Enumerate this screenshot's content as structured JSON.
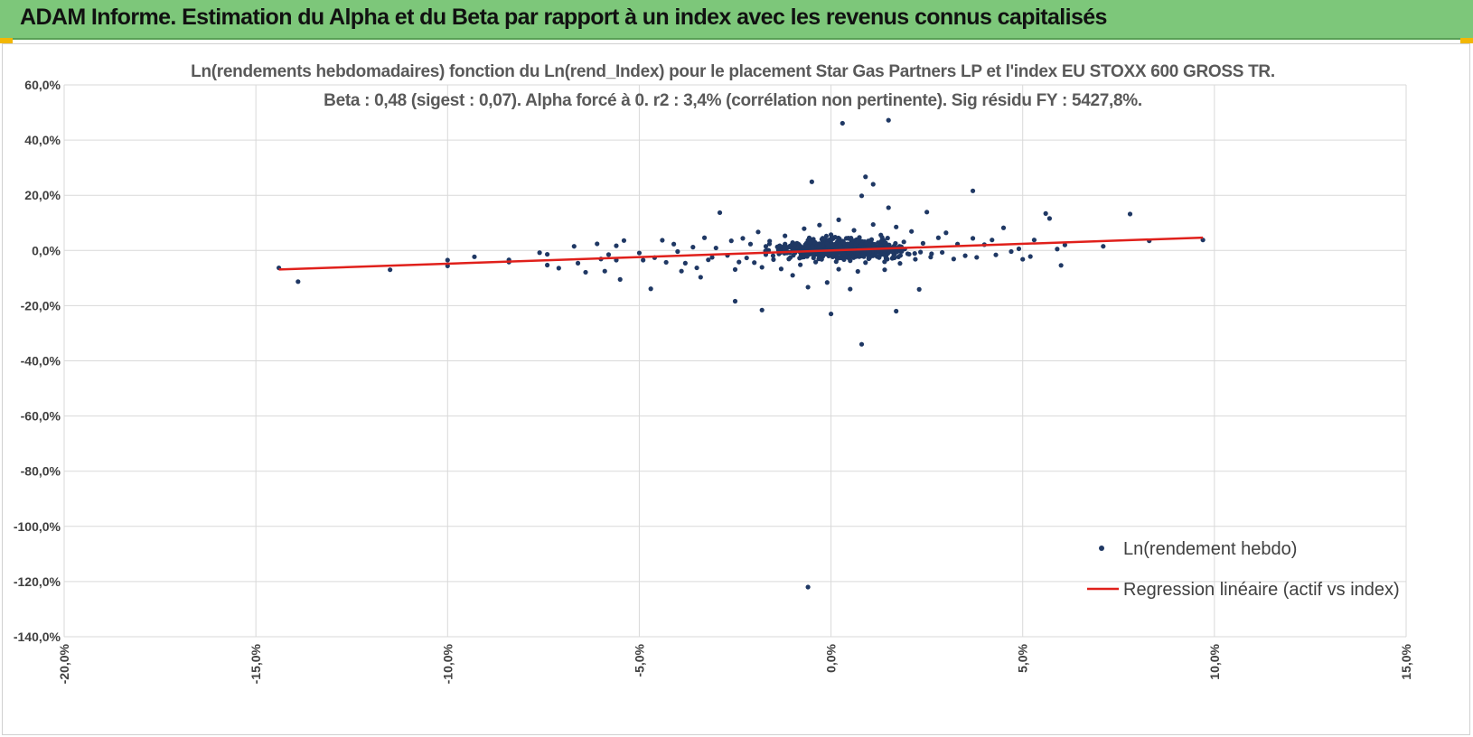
{
  "header": {
    "title": "ADAM Informe. Estimation du Alpha et du Beta par rapport à un index avec les revenus connus capitalisés"
  },
  "colors": {
    "banner": "#7dc77a",
    "points": "#1f3864",
    "regression": "#e0201b",
    "grid": "#d9d9d9"
  },
  "chart_data": {
    "type": "scatter",
    "title_lines": [
      "Ln(rendements hebdomadaires) fonction du Ln(rend_Index) pour le placement Star Gas Partners LP et l'index EU STOXX 600 GROSS TR.",
      "Beta : 0,48 (sigest : 0,07). Alpha forcé à 0. r2 : 3,4% (corrélation non pertinente). Sig résidu FY : 5427,8%."
    ],
    "xlim": [
      -20,
      15
    ],
    "ylim": [
      -140,
      60
    ],
    "x_ticks": [
      -20,
      -15,
      -10,
      -5,
      0,
      5,
      10,
      15
    ],
    "y_ticks": [
      60,
      40,
      20,
      0,
      -20,
      -40,
      -60,
      -80,
      -100,
      -120,
      -140
    ],
    "x_tick_labels": [
      "-20,0%",
      "-15,0%",
      "-10,0%",
      "-5,0%",
      "0,0%",
      "5,0%",
      "10,0%",
      "15,0%"
    ],
    "y_tick_labels": [
      "60,0%",
      "40,0%",
      "20,0%",
      "0,0%",
      "-20,0%",
      "-40,0%",
      "-60,0%",
      "-80,0%",
      "-100,0%",
      "-120,0%",
      "-140,0%"
    ],
    "grid": true,
    "legend_position": "bottom-right",
    "series": [
      {
        "name": "Ln(rendement hebdo)",
        "kind": "points",
        "points": [
          [
            -14.4,
            -6.3
          ],
          [
            -13.9,
            -11.3
          ],
          [
            -11.5,
            -7.0
          ],
          [
            -10.0,
            -5.6
          ],
          [
            -10.0,
            -3.5
          ],
          [
            -9.3,
            -2.3
          ],
          [
            -8.4,
            -4.2
          ],
          [
            -8.4,
            -3.4
          ],
          [
            -7.6,
            -0.8
          ],
          [
            -7.4,
            -5.3
          ],
          [
            -7.4,
            -1.4
          ],
          [
            -7.1,
            -6.4
          ],
          [
            -6.7,
            1.5
          ],
          [
            -6.6,
            -4.6
          ],
          [
            -6.4,
            -7.9
          ],
          [
            -6.1,
            2.4
          ],
          [
            -6.0,
            -3.1
          ],
          [
            -5.9,
            -7.5
          ],
          [
            -5.8,
            -1.5
          ],
          [
            -5.6,
            -3.5
          ],
          [
            -5.6,
            1.7
          ],
          [
            -5.5,
            -10.5
          ],
          [
            -5.4,
            3.6
          ],
          [
            -5.0,
            -0.9
          ],
          [
            -4.9,
            -3.5
          ],
          [
            -4.7,
            -13.9
          ],
          [
            -4.6,
            -2.6
          ],
          [
            -4.4,
            3.7
          ],
          [
            -4.3,
            -4.3
          ],
          [
            -4.1,
            2.3
          ],
          [
            -4.0,
            -0.4
          ],
          [
            -3.9,
            -7.5
          ],
          [
            -3.8,
            -4.6
          ],
          [
            -3.6,
            1.2
          ],
          [
            -3.5,
            -6.3
          ],
          [
            -3.4,
            -9.7
          ],
          [
            -3.3,
            4.6
          ],
          [
            -3.2,
            -3.4
          ],
          [
            -3.1,
            -2.5
          ],
          [
            -3.0,
            0.9
          ],
          [
            -2.9,
            13.7
          ],
          [
            -2.7,
            -1.8
          ],
          [
            -2.6,
            3.5
          ],
          [
            -2.5,
            -6.9
          ],
          [
            -2.5,
            -18.4
          ],
          [
            -2.4,
            -4.2
          ],
          [
            -2.3,
            4.4
          ],
          [
            -2.2,
            -2.7
          ],
          [
            -2.1,
            2.3
          ],
          [
            -2.0,
            -4.4
          ],
          [
            -1.9,
            6.7
          ],
          [
            -1.8,
            -6.1
          ],
          [
            -1.8,
            -21.6
          ],
          [
            -1.7,
            -1.5
          ],
          [
            -1.6,
            3.4
          ],
          [
            -1.5,
            -3.3
          ],
          [
            -1.4,
            1.3
          ],
          [
            -1.3,
            -6.7
          ],
          [
            -1.2,
            5.3
          ],
          [
            -1.1,
            -3.1
          ],
          [
            -1.0,
            -9.0
          ],
          [
            -0.9,
            2.2
          ],
          [
            -0.8,
            -5.2
          ],
          [
            -0.7,
            7.9
          ],
          [
            -0.7,
            -0.8
          ],
          [
            -0.6,
            -13.3
          ],
          [
            -0.6,
            -122.0
          ],
          [
            -0.5,
            24.9
          ],
          [
            -0.5,
            3.1
          ],
          [
            -0.4,
            -4.2
          ],
          [
            -0.3,
            9.2
          ],
          [
            -0.2,
            -1.6
          ],
          [
            -0.1,
            -11.6
          ],
          [
            0.0,
            5.7
          ],
          [
            0.0,
            -23.0
          ],
          [
            0.1,
            2.2
          ],
          [
            0.2,
            -6.8
          ],
          [
            0.2,
            11.1
          ],
          [
            0.3,
            46.1
          ],
          [
            0.3,
            -1.3
          ],
          [
            0.4,
            4.4
          ],
          [
            0.5,
            -14.0
          ],
          [
            0.5,
            -3.7
          ],
          [
            0.6,
            7.3
          ],
          [
            0.7,
            -7.6
          ],
          [
            0.7,
            0.5
          ],
          [
            0.8,
            19.8
          ],
          [
            0.8,
            -34.0
          ],
          [
            0.9,
            26.7
          ],
          [
            0.9,
            -4.4
          ],
          [
            1.0,
            3.2
          ],
          [
            1.1,
            9.4
          ],
          [
            1.1,
            24.0
          ],
          [
            1.2,
            -2.2
          ],
          [
            1.3,
            5.6
          ],
          [
            1.4,
            -7.0
          ],
          [
            1.5,
            47.2
          ],
          [
            1.5,
            15.5
          ],
          [
            1.6,
            1.0
          ],
          [
            1.7,
            -22.0
          ],
          [
            1.7,
            8.5
          ],
          [
            1.8,
            -4.7
          ],
          [
            1.9,
            3.1
          ],
          [
            2.0,
            -1.2
          ],
          [
            2.1,
            6.9
          ],
          [
            2.2,
            -3.2
          ],
          [
            2.3,
            -14.1
          ],
          [
            2.4,
            2.6
          ],
          [
            2.5,
            13.9
          ],
          [
            2.6,
            -2.4
          ],
          [
            2.8,
            4.6
          ],
          [
            2.9,
            -0.7
          ],
          [
            3.0,
            6.4
          ],
          [
            3.2,
            -3.1
          ],
          [
            3.3,
            2.3
          ],
          [
            3.5,
            -1.9
          ],
          [
            3.7,
            21.6
          ],
          [
            3.7,
            4.4
          ],
          [
            3.8,
            -2.5
          ],
          [
            4.0,
            2.1
          ],
          [
            4.2,
            3.8
          ],
          [
            4.3,
            -1.6
          ],
          [
            4.5,
            8.2
          ],
          [
            4.7,
            -0.4
          ],
          [
            4.9,
            0.6
          ],
          [
            5.0,
            -3.2
          ],
          [
            5.2,
            -2.2
          ],
          [
            5.3,
            3.8
          ],
          [
            5.6,
            13.4
          ],
          [
            5.7,
            11.6
          ],
          [
            5.9,
            0.5
          ],
          [
            6.0,
            -5.4
          ],
          [
            6.1,
            2.0
          ],
          [
            7.1,
            1.5
          ],
          [
            7.8,
            13.2
          ],
          [
            8.3,
            3.5
          ],
          [
            9.7,
            3.8
          ]
        ],
        "cluster_center": [
          0.3,
          0.6
        ]
      },
      {
        "name": "Regression linéaire (actif vs index)",
        "kind": "line",
        "beta": 0.48,
        "alpha": 0,
        "x_range": [
          -14.4,
          9.7
        ]
      }
    ]
  }
}
